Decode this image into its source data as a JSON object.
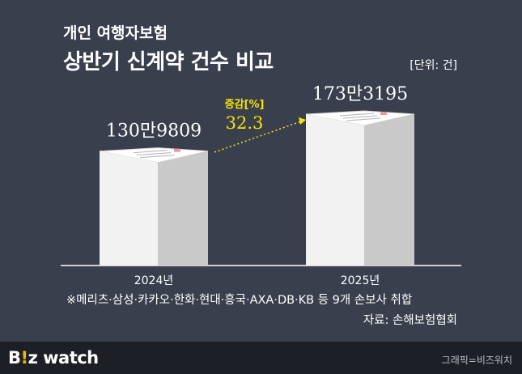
{
  "chart_data": {
    "type": "bar",
    "supertitle": "개인 여행자보험",
    "title": "상반기 신계약 건수 비교",
    "unit": "[단위: 건]",
    "categories": [
      "2024년",
      "2025년"
    ],
    "values": [
      1309809,
      1733195
    ],
    "value_labels": [
      "130만9809",
      "173만3195"
    ],
    "change_label": "증감[%]",
    "change_value": "32.3",
    "ylim": [
      0,
      1800000
    ],
    "colors": {
      "bar_front": "#f2f2f2",
      "bar_side": "#c9c9c9",
      "bar_top": "#ffffff",
      "accent": "#f4e500",
      "label": "#ffffff"
    }
  },
  "footnote": "※메리츠·삼성·카카오·한화·현대·흥국·AXA·DB·KB 등 9개 손보사 취합",
  "source": "자료: 손해보험협회",
  "brand": {
    "part1": "B",
    "part2": "!",
    "part3": "z watch"
  },
  "credit": "그래픽=비즈워치"
}
